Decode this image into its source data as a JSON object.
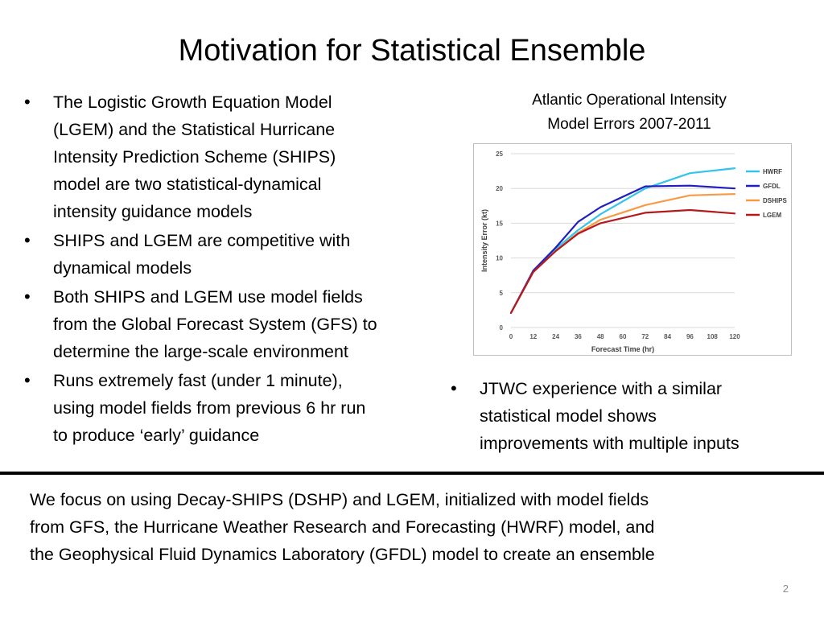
{
  "slide": {
    "title": "Motivation for Statistical Ensemble",
    "page_number": "2"
  },
  "left_bullets": [
    {
      "lines": [
        "The Logistic Growth Equation Model",
        "(LGEM) and the Statistical Hurricane",
        "Intensity Prediction Scheme (SHIPS)",
        "model  are two statistical-dynamical",
        "intensity guidance models"
      ]
    },
    {
      "lines": [
        "SHIPS and LGEM are competitive with",
        "dynamical models"
      ]
    },
    {
      "lines": [
        "Both SHIPS and LGEM use model fields",
        "from the Global Forecast System (GFS) to",
        "determine the large-scale environment"
      ]
    },
    {
      "lines": [
        "Runs extremely fast (under 1 minute),",
        "using model fields from previous 6 hr run",
        "to produce ‘early’ guidance"
      ]
    }
  ],
  "chart_caption": {
    "line1": "Atlantic  Operational Intensity",
    "line2": "Model Errors   2007-2011"
  },
  "right_bullets": [
    {
      "lines": [
        "JTWC experience with a similar",
        "statistical model shows",
        "improvements with multiple inputs"
      ]
    }
  ],
  "conclusion": {
    "lines": [
      "We focus on using Decay-SHIPS (DSHP) and LGEM, initialized with model fields",
      "from GFS, the Hurricane Weather Research and Forecasting (HWRF) model, and",
      "the Geophysical Fluid Dynamics Laboratory (GFDL) model  to create an ensemble"
    ]
  },
  "chart_data": {
    "type": "line",
    "title": "",
    "xlabel": "Forecast Time (hr)",
    "ylabel": "Intensity Error (kt)",
    "x": [
      0,
      12,
      24,
      36,
      48,
      60,
      72,
      84,
      96,
      108,
      120
    ],
    "xticks": [
      0,
      12,
      24,
      36,
      48,
      60,
      72,
      84,
      96,
      108,
      120
    ],
    "yticks": [
      0,
      5,
      10,
      15,
      20,
      25
    ],
    "xlim": [
      0,
      120
    ],
    "ylim": [
      0,
      25
    ],
    "grid": "horizontal",
    "legend": "right",
    "series": [
      {
        "name": "HWRF",
        "color": "#33c4ea",
        "x": [
          0,
          12,
          24,
          36,
          48,
          72,
          96,
          120
        ],
        "values": [
          2.1,
          8.2,
          11.3,
          14.0,
          16.3,
          20.0,
          22.2,
          22.9
        ]
      },
      {
        "name": "GFDL",
        "color": "#1f1fbf",
        "x": [
          0,
          12,
          24,
          36,
          48,
          72,
          96,
          120
        ],
        "values": [
          2.1,
          8.2,
          11.5,
          15.2,
          17.3,
          20.3,
          20.4,
          20.0
        ]
      },
      {
        "name": "DSHIPS",
        "color": "#f79a46",
        "x": [
          0,
          12,
          24,
          36,
          48,
          72,
          96,
          120
        ],
        "values": [
          2.1,
          8.0,
          11.0,
          13.6,
          15.5,
          17.6,
          19.0,
          19.2
        ]
      },
      {
        "name": "LGEM",
        "color": "#b3191f",
        "x": [
          0,
          12,
          24,
          36,
          48,
          72,
          96,
          120
        ],
        "values": [
          2.1,
          8.0,
          11.0,
          13.5,
          15.0,
          16.5,
          16.9,
          16.4
        ]
      }
    ]
  }
}
